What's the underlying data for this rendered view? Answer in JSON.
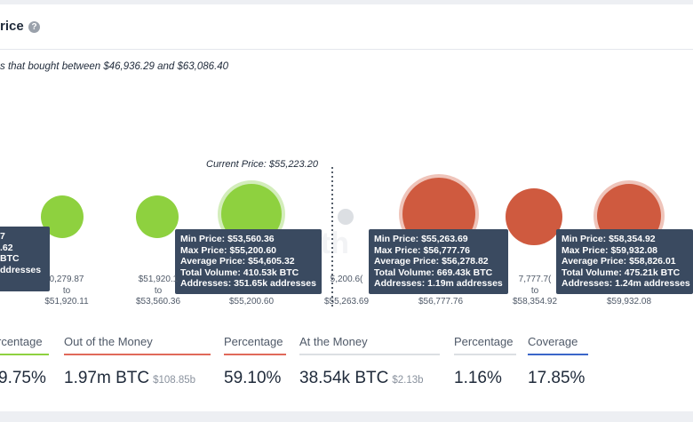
{
  "header": {
    "title": "rice",
    "help_icon": "question-circle-icon"
  },
  "subtitle": "s that bought between $46,936.29 and $63,086.40",
  "current_price_label": "Current Price: $55,223.20",
  "watermark": "oth",
  "colors": {
    "green": "#8ed13f",
    "red": "#cf5a3f",
    "grey": "#dcdfe3",
    "tooltip_bg": "#3a4a60",
    "red_line": "#e0695a",
    "blue_line": "#3b66c9"
  },
  "tooltips": {
    "partial": {
      "l1": "7",
      "l2": ".62",
      "l3": "BTC",
      "l4": "ddresses"
    },
    "t1": {
      "min": "Min Price: $53,560.36",
      "max": "Max Price: $55,200.60",
      "avg": "Average Price: $54,605.32",
      "vol": "Total Volume: 410.53k BTC",
      "addr": "Addresses: 351.65k addresses"
    },
    "t2": {
      "min": "Min Price: $55,263.69",
      "max": "Max Price: $56,777.76",
      "avg": "Average Price: $56,278.82",
      "vol": "Total Volume: 669.43k BTC",
      "addr": "Addresses: 1.19m addresses"
    },
    "t3": {
      "min": "Min Price: $58,354.92",
      "max": "Max Price: $59,932.08",
      "avg": "Average Price: $58,826.01",
      "vol": "Total Volume: 475.21k BTC",
      "addr": "Addresses: 1.24m addresses"
    }
  },
  "ranges": {
    "r1": {
      "from": "0,279.87",
      "to": "to",
      "end": "$51,920.11"
    },
    "r2": {
      "from": "$51,920.1",
      "to": "to",
      "end": "$53,560.36"
    },
    "r3": {
      "end": "$55,200.60"
    },
    "r4": {
      "from": "5,200.6(",
      "end": "$55,263.69"
    },
    "r5": {
      "end": "$56,777.76"
    },
    "r6": {
      "from": "7,777.7(",
      "to": "to",
      "end": "$58,354.92"
    },
    "r7": {
      "end": "$59,932.08"
    }
  },
  "stats": [
    {
      "label": "rcentage",
      "value": "9.75%",
      "sub": ""
    },
    {
      "label": "Out of the Money",
      "value": "1.97m BTC",
      "sub": "$108.85b"
    },
    {
      "label": "Percentage",
      "value": "59.10%",
      "sub": ""
    },
    {
      "label": "At the Money",
      "value": "38.54k BTC",
      "sub": "$2.13b"
    },
    {
      "label": "Percentage",
      "value": "1.16%",
      "sub": ""
    },
    {
      "label": "Coverage",
      "value": "17.85%",
      "sub": ""
    }
  ]
}
